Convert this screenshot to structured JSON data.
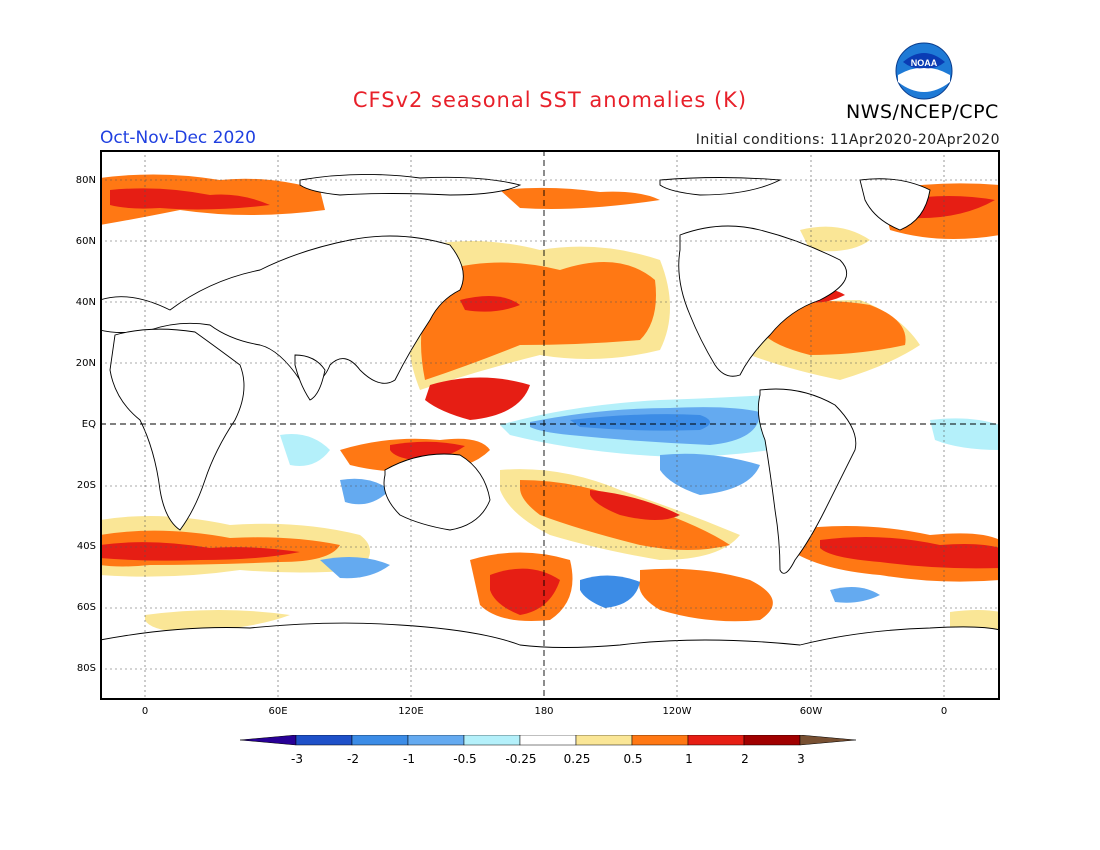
{
  "header": {
    "title": "CFSv2 seasonal SST anomalies (K)",
    "agency": "NWS/NCEP/CPC",
    "season": "Oct-Nov-Dec 2020",
    "initial_conditions": "Initial conditions: 11Apr2020-20Apr2020",
    "logo_text": "NOAA"
  },
  "map": {
    "lat_labels": [
      "80N",
      "60N",
      "40N",
      "20N",
      "EQ",
      "20S",
      "40S",
      "60S",
      "80S"
    ],
    "lon_labels": [
      "0",
      "60E",
      "120E",
      "180",
      "120W",
      "60W",
      "0"
    ]
  },
  "colorbar": {
    "labels": [
      "-3",
      "-2",
      "-1",
      "-0.5",
      "-0.25",
      "0.25",
      "0.5",
      "1",
      "2",
      "3"
    ],
    "colors": [
      "#280096",
      "#1e50c8",
      "#3c8ce6",
      "#64aaf0",
      "#b4f0fa",
      "#ffffff",
      "#fae696",
      "#ff7814",
      "#e61e14",
      "#a00000",
      "#785032"
    ]
  }
}
